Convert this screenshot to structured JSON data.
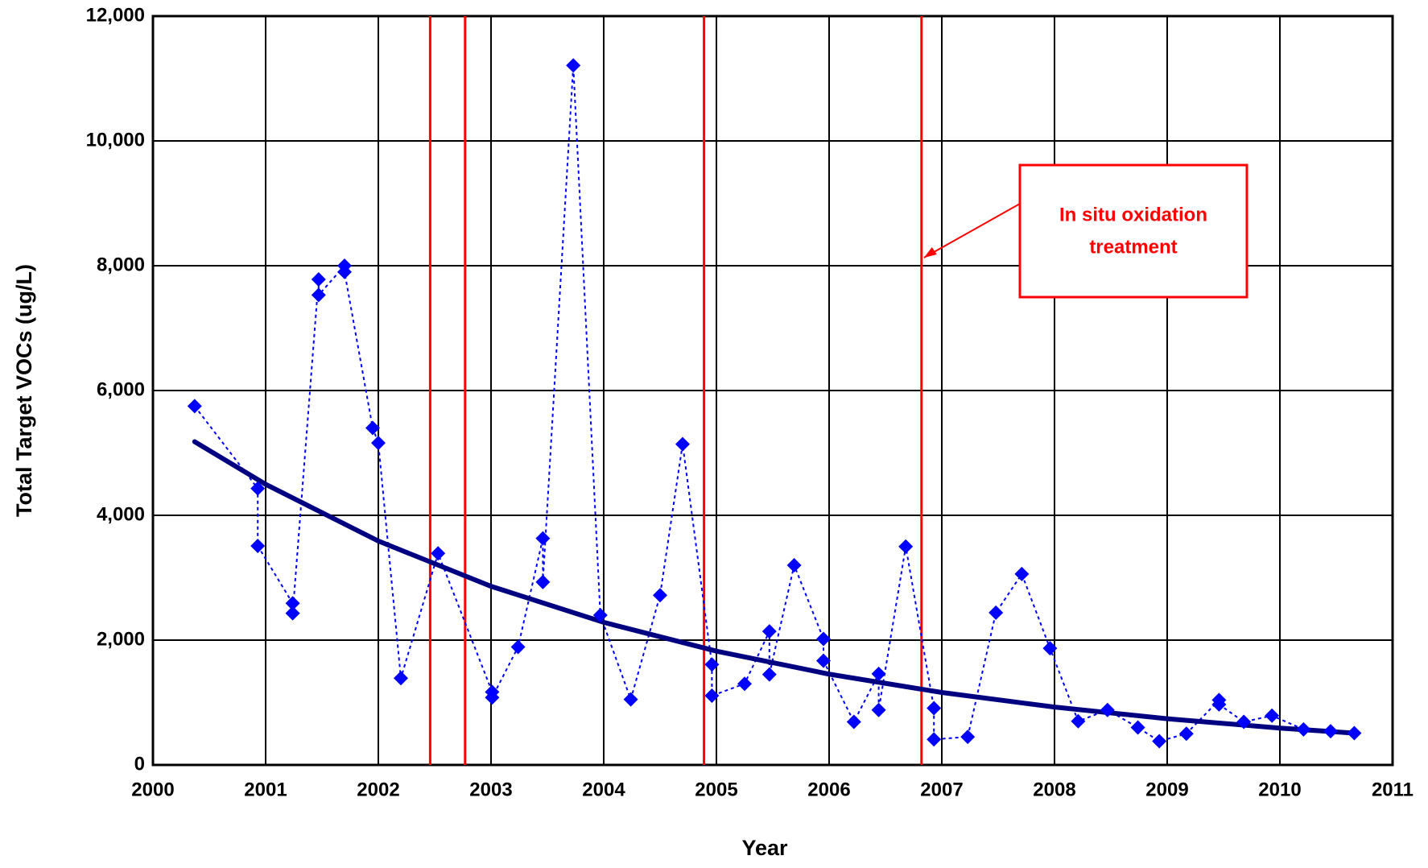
{
  "chart_data": {
    "type": "scatter",
    "xlabel": "Year",
    "ylabel": "Total Target VOCs (ug/L)",
    "xlim": [
      2000,
      2011
    ],
    "ylim": [
      0,
      12000
    ],
    "xticks": [
      2000,
      2001,
      2002,
      2003,
      2004,
      2005,
      2006,
      2007,
      2008,
      2009,
      2010,
      2011
    ],
    "yticks": [
      0,
      {
        "value": 2000,
        "label": "2,000"
      },
      {
        "value": 4000,
        "label": "4,000"
      },
      {
        "value": 6000,
        "label": "6,000"
      },
      {
        "value": 8000,
        "label": "8,000"
      },
      {
        "value": 10000,
        "label": "10,000"
      },
      {
        "value": 12000,
        "label": "12,000"
      }
    ],
    "grid": true,
    "series": [
      {
        "color": "#0000ff",
        "x": [
          2000.37,
          2000.93,
          2000.93,
          2001.24,
          2001.24,
          2001.47,
          2001.47,
          2001.7,
          2001.7,
          2001.95,
          2002.0,
          2002.2,
          2002.53,
          2003.01,
          2003.01,
          2003.24,
          2003.46,
          2003.46,
          2003.73,
          2003.97,
          2004.24,
          2004.5,
          2004.7,
          2004.96,
          2004.96,
          2005.25,
          2005.47,
          2005.47,
          2005.69,
          2005.95,
          2005.95,
          2006.22,
          2006.44,
          2006.44,
          2006.68,
          2006.93,
          2006.93,
          2007.23,
          2007.48,
          2007.71,
          2007.96,
          2008.21,
          2008.47,
          2008.74,
          2008.93,
          2009.17,
          2009.46,
          2009.46,
          2009.68,
          2009.93,
          2010.21,
          2010.45,
          2010.66
        ],
        "values": [
          5750,
          4430,
          3510,
          2590,
          2430,
          7780,
          7530,
          8000,
          7900,
          5400,
          5160,
          1390,
          3390,
          1170,
          1080,
          1890,
          3630,
          2930,
          11210,
          2400,
          1050,
          2720,
          5140,
          1610,
          1110,
          1300,
          2140,
          1450,
          3200,
          2020,
          1670,
          690,
          1460,
          880,
          3500,
          910,
          410,
          450,
          2440,
          3060,
          1870,
          700,
          880,
          600,
          380,
          500,
          1040,
          970,
          690,
          790,
          570,
          540,
          510
        ]
      },
      {
        "color": "#000080",
        "x": [
          2000.37,
          2001,
          2002,
          2003,
          2004,
          2005,
          2006,
          2007,
          2008,
          2009,
          2010,
          2010.66
        ],
        "values": [
          5180,
          4497,
          3588,
          2863,
          2285,
          1824,
          1455,
          1161,
          927,
          740,
          590,
          510
        ]
      }
    ],
    "vlines": {
      "color": "#ff0000",
      "x": [
        2002.46,
        2002.77,
        2004.89,
        2006.82
      ]
    },
    "annotation": [
      "In situ oxidation",
      "treatment"
    ]
  }
}
